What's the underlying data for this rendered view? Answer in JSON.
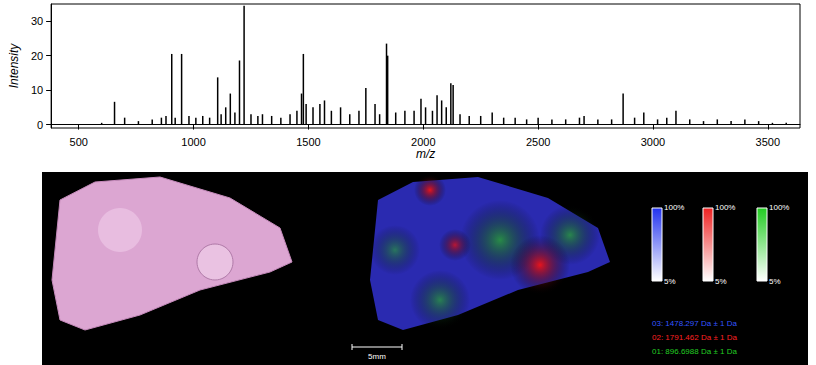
{
  "chart_data": {
    "type": "bar",
    "x_label": "m/z",
    "y_label": "Intensity",
    "color": "#000000",
    "x": [
      600,
      656,
      700,
      760,
      820,
      860,
      880,
      905,
      920,
      948,
      980,
      1010,
      1040,
      1070,
      1105,
      1120,
      1140,
      1160,
      1180,
      1200,
      1220,
      1250,
      1280,
      1300,
      1340,
      1380,
      1420,
      1450,
      1470,
      1478,
      1490,
      1520,
      1550,
      1570,
      1600,
      1640,
      1680,
      1720,
      1750,
      1790,
      1810,
      1840,
      1845,
      1880,
      1920,
      1960,
      1990,
      2010,
      2040,
      2060,
      2080,
      2100,
      2120,
      2130,
      2160,
      2200,
      2250,
      2300,
      2350,
      2400,
      2450,
      2500,
      2560,
      2620,
      2680,
      2700,
      2760,
      2820,
      2870,
      2920,
      2960,
      3020,
      3060,
      3100,
      3160,
      3220,
      3280,
      3340,
      3400,
      3460,
      3520,
      3580
    ],
    "values": [
      0.5,
      6.6,
      2,
      1,
      1.5,
      2,
      2.5,
      20.5,
      2,
      20.5,
      2.5,
      2,
      2.5,
      2,
      13.7,
      3,
      5,
      9,
      3.5,
      18.6,
      34.5,
      3,
      2.5,
      3,
      2.5,
      2,
      3,
      4,
      9,
      20.5,
      6,
      5,
      6,
      7,
      4,
      5,
      3,
      4,
      10.6,
      6,
      3,
      23.5,
      20,
      3.5,
      4,
      4,
      7.5,
      5,
      4,
      8.5,
      7,
      5,
      12,
      11.5,
      3,
      2.5,
      2.5,
      3.5,
      2,
      2,
      1.5,
      2,
      1.5,
      1.5,
      2,
      2.5,
      1.5,
      1.5,
      9,
      2,
      3.5,
      1.5,
      2,
      4,
      1.5,
      1,
      1.5,
      1,
      1.5,
      1,
      0.5,
      0.5
    ],
    "xlim": [
      380,
      3640
    ],
    "xticks": [
      500,
      1000,
      1500,
      2000,
      2500,
      3000,
      3500
    ],
    "ylim": [
      -1,
      35
    ],
    "yticks": [
      0,
      10,
      20,
      30
    ],
    "grid": false
  },
  "image_panel": {
    "scale_bar": "5mm",
    "color_bars": [
      {
        "color": "#2233ee",
        "max_label": "100%",
        "min_label": "5%"
      },
      {
        "color": "#ee2222",
        "max_label": "100%",
        "min_label": "5%"
      },
      {
        "color": "#22cc22",
        "max_label": "100%",
        "min_label": "5%"
      }
    ],
    "ion_images": [
      {
        "label": "03: 1478.297 Da ± 1 Da",
        "color": "#3355ff"
      },
      {
        "label": "02: 1791.462 Da ± 1 Da",
        "color": "#ff2020"
      },
      {
        "label": "01: 896.6988 Da ± 1 Da",
        "color": "#22cc22"
      }
    ]
  }
}
